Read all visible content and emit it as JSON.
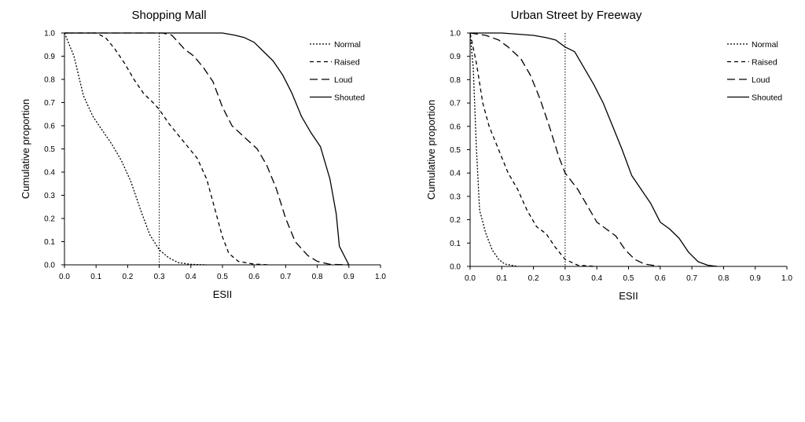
{
  "chart_data": [
    {
      "type": "line",
      "title": "Shopping Mall",
      "xlabel": "ESII",
      "ylabel": "Cumulative proportion",
      "xlim": [
        0,
        1
      ],
      "ylim": [
        0,
        1
      ],
      "x_ticks": [
        "0.0",
        "0.1",
        "0.2",
        "0.3",
        "0.4",
        "0.5",
        "0.6",
        "0.7",
        "0.8",
        "0.9",
        "1.0"
      ],
      "y_ticks": [
        "0.0",
        "0.1",
        "0.2",
        "0.3",
        "0.4",
        "0.5",
        "0.6",
        "0.7",
        "0.8",
        "0.9",
        "1.0"
      ],
      "grid": false,
      "legend_position": "top-right",
      "reference_line_x": 0.3,
      "series": [
        {
          "name": "Normal",
          "style": "dotted",
          "points": [
            [
              0,
              1
            ],
            [
              0.03,
              0.9
            ],
            [
              0.06,
              0.73
            ],
            [
              0.09,
              0.64
            ],
            [
              0.12,
              0.58
            ],
            [
              0.15,
              0.52
            ],
            [
              0.18,
              0.45
            ],
            [
              0.21,
              0.36
            ],
            [
              0.24,
              0.24
            ],
            [
              0.27,
              0.13
            ],
            [
              0.3,
              0.065
            ],
            [
              0.33,
              0.03
            ],
            [
              0.36,
              0.01
            ],
            [
              0.4,
              0.002
            ],
            [
              0.45,
              0
            ]
          ]
        },
        {
          "name": "Raised",
          "style": "short-dash",
          "points": [
            [
              0,
              1
            ],
            [
              0.05,
              1
            ],
            [
              0.1,
              1
            ],
            [
              0.13,
              0.98
            ],
            [
              0.16,
              0.93
            ],
            [
              0.19,
              0.87
            ],
            [
              0.22,
              0.8
            ],
            [
              0.25,
              0.74
            ],
            [
              0.28,
              0.7
            ],
            [
              0.3,
              0.67
            ],
            [
              0.33,
              0.61
            ],
            [
              0.36,
              0.56
            ],
            [
              0.39,
              0.51
            ],
            [
              0.42,
              0.46
            ],
            [
              0.45,
              0.37
            ],
            [
              0.48,
              0.22
            ],
            [
              0.5,
              0.12
            ],
            [
              0.52,
              0.05
            ],
            [
              0.55,
              0.015
            ],
            [
              0.6,
              0.003
            ],
            [
              0.65,
              0
            ]
          ]
        },
        {
          "name": "Loud",
          "style": "long-dash",
          "points": [
            [
              0,
              1
            ],
            [
              0.2,
              1
            ],
            [
              0.31,
              1
            ],
            [
              0.34,
              0.99
            ],
            [
              0.38,
              0.93
            ],
            [
              0.41,
              0.9
            ],
            [
              0.44,
              0.85
            ],
            [
              0.47,
              0.79
            ],
            [
              0.5,
              0.68
            ],
            [
              0.53,
              0.6
            ],
            [
              0.57,
              0.55
            ],
            [
              0.61,
              0.5
            ],
            [
              0.64,
              0.43
            ],
            [
              0.67,
              0.33
            ],
            [
              0.7,
              0.2
            ],
            [
              0.73,
              0.1
            ],
            [
              0.77,
              0.04
            ],
            [
              0.8,
              0.015
            ],
            [
              0.84,
              0.002
            ],
            [
              0.9,
              0
            ]
          ]
        },
        {
          "name": "Shouted",
          "style": "solid",
          "points": [
            [
              0,
              1
            ],
            [
              0.2,
              1
            ],
            [
              0.4,
              1
            ],
            [
              0.5,
              1
            ],
            [
              0.54,
              0.99
            ],
            [
              0.57,
              0.98
            ],
            [
              0.6,
              0.96
            ],
            [
              0.63,
              0.92
            ],
            [
              0.66,
              0.88
            ],
            [
              0.69,
              0.82
            ],
            [
              0.72,
              0.74
            ],
            [
              0.75,
              0.64
            ],
            [
              0.78,
              0.57
            ],
            [
              0.81,
              0.51
            ],
            [
              0.84,
              0.37
            ],
            [
              0.86,
              0.22
            ],
            [
              0.87,
              0.08
            ],
            [
              0.9,
              0
            ]
          ]
        }
      ]
    },
    {
      "type": "line",
      "title": "Urban Street by Freeway",
      "xlabel": "ESII",
      "ylabel": "Cumulative proportion",
      "xlim": [
        0,
        1
      ],
      "ylim": [
        0,
        1
      ],
      "x_ticks": [
        "0.0",
        "0.1",
        "0.2",
        "0.3",
        "0.4",
        "0.5",
        "0.6",
        "0.7",
        "0.8",
        "0.9",
        "1.0"
      ],
      "y_ticks": [
        "0.0",
        "0.1",
        "0.2",
        "0.3",
        "0.4",
        "0.5",
        "0.6",
        "0.7",
        "0.8",
        "0.9",
        "1.0"
      ],
      "grid": false,
      "legend_position": "top-right",
      "reference_line_x": 0.3,
      "series": [
        {
          "name": "Normal",
          "style": "dotted",
          "points": [
            [
              0,
              1
            ],
            [
              0.01,
              0.85
            ],
            [
              0.02,
              0.5
            ],
            [
              0.03,
              0.24
            ],
            [
              0.05,
              0.14
            ],
            [
              0.07,
              0.07
            ],
            [
              0.09,
              0.03
            ],
            [
              0.11,
              0.01
            ],
            [
              0.15,
              0
            ]
          ]
        },
        {
          "name": "Raised",
          "style": "short-dash",
          "points": [
            [
              0,
              1
            ],
            [
              0.02,
              0.87
            ],
            [
              0.04,
              0.7
            ],
            [
              0.06,
              0.6
            ],
            [
              0.09,
              0.5
            ],
            [
              0.12,
              0.4
            ],
            [
              0.15,
              0.33
            ],
            [
              0.18,
              0.24
            ],
            [
              0.21,
              0.17
            ],
            [
              0.24,
              0.14
            ],
            [
              0.27,
              0.08
            ],
            [
              0.3,
              0.03
            ],
            [
              0.34,
              0.005
            ],
            [
              0.4,
              0
            ]
          ]
        },
        {
          "name": "Loud",
          "style": "long-dash",
          "points": [
            [
              0,
              1
            ],
            [
              0.05,
              0.99
            ],
            [
              0.09,
              0.97
            ],
            [
              0.12,
              0.94
            ],
            [
              0.16,
              0.89
            ],
            [
              0.19,
              0.82
            ],
            [
              0.22,
              0.72
            ],
            [
              0.25,
              0.6
            ],
            [
              0.28,
              0.47
            ],
            [
              0.3,
              0.4
            ],
            [
              0.34,
              0.33
            ],
            [
              0.37,
              0.26
            ],
            [
              0.4,
              0.19
            ],
            [
              0.43,
              0.16
            ],
            [
              0.46,
              0.13
            ],
            [
              0.49,
              0.07
            ],
            [
              0.52,
              0.03
            ],
            [
              0.55,
              0.01
            ],
            [
              0.6,
              0
            ]
          ]
        },
        {
          "name": "Shouted",
          "style": "solid",
          "points": [
            [
              0,
              1
            ],
            [
              0.1,
              1
            ],
            [
              0.2,
              0.99
            ],
            [
              0.24,
              0.98
            ],
            [
              0.27,
              0.97
            ],
            [
              0.3,
              0.94
            ],
            [
              0.33,
              0.92
            ],
            [
              0.36,
              0.85
            ],
            [
              0.39,
              0.78
            ],
            [
              0.42,
              0.7
            ],
            [
              0.45,
              0.6
            ],
            [
              0.48,
              0.5
            ],
            [
              0.51,
              0.39
            ],
            [
              0.54,
              0.33
            ],
            [
              0.57,
              0.27
            ],
            [
              0.6,
              0.19
            ],
            [
              0.63,
              0.16
            ],
            [
              0.66,
              0.12
            ],
            [
              0.69,
              0.06
            ],
            [
              0.72,
              0.02
            ],
            [
              0.75,
              0.005
            ],
            [
              0.78,
              0
            ]
          ]
        }
      ]
    }
  ]
}
